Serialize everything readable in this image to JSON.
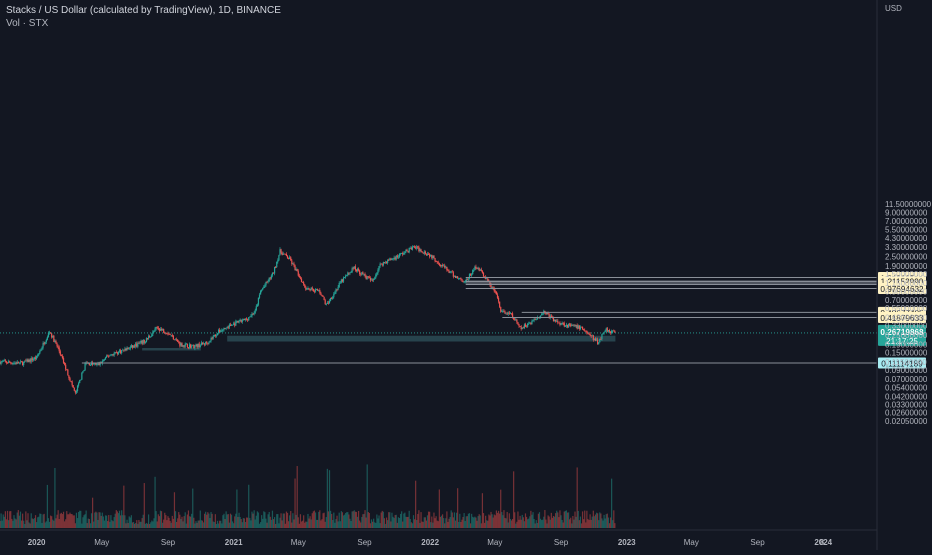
{
  "chart_data": {
    "type": "candlestick",
    "title": "Stacks / US Dollar (calculated by TradingView), 1D, BINANCE",
    "subtitle": "Vol · STX",
    "currency": "USD",
    "y_scale": "log",
    "y_ticks": [
      "11.50000000",
      "9.00000000",
      "7.00000000",
      "5.50000000",
      "4.30000000",
      "3.30000000",
      "2.50000000",
      "1.90000000",
      "1.50000000",
      "1.15000000",
      "0.90000000",
      "0.70000000",
      "0.55000000",
      "0.42000000",
      "0.33000000",
      "0.25000000",
      "0.19000000",
      "0.15000000",
      "0.11500000",
      "0.09000000",
      "0.07000000",
      "0.05400000",
      "0.04200000",
      "0.03300000",
      "0.02600000",
      "0.02050000"
    ],
    "x_ticks": [
      "2020",
      "May",
      "Sep",
      "2021",
      "May",
      "Sep",
      "2022",
      "May",
      "Sep",
      "2023",
      "May",
      "Sep",
      "2024",
      "8"
    ],
    "x_domain": [
      "2019-10-25",
      "2024-01-08"
    ],
    "last_price": "0.26719868",
    "countdown": "21:17:25",
    "last_date": "2022-12-11",
    "price_series": [
      {
        "date": "2019-10-25",
        "price": 0.115
      },
      {
        "date": "2019-12-05",
        "price": 0.11
      },
      {
        "date": "2020-01-01",
        "price": 0.13
      },
      {
        "date": "2020-01-25",
        "price": 0.28
      },
      {
        "date": "2020-02-10",
        "price": 0.17
      },
      {
        "date": "2020-03-13",
        "price": 0.045
      },
      {
        "date": "2020-04-01",
        "price": 0.11
      },
      {
        "date": "2020-04-25",
        "price": 0.105
      },
      {
        "date": "2020-05-15",
        "price": 0.14
      },
      {
        "date": "2020-06-20",
        "price": 0.17
      },
      {
        "date": "2020-07-20",
        "price": 0.21
      },
      {
        "date": "2020-08-12",
        "price": 0.31
      },
      {
        "date": "2020-09-01",
        "price": 0.27
      },
      {
        "date": "2020-09-25",
        "price": 0.19
      },
      {
        "date": "2020-10-20",
        "price": 0.18
      },
      {
        "date": "2020-11-12",
        "price": 0.2
      },
      {
        "date": "2020-12-05",
        "price": 0.28
      },
      {
        "date": "2020-12-25",
        "price": 0.33
      },
      {
        "date": "2021-01-25",
        "price": 0.4
      },
      {
        "date": "2021-02-10",
        "price": 0.5
      },
      {
        "date": "2021-02-20",
        "price": 0.9
      },
      {
        "date": "2021-03-15",
        "price": 1.5
      },
      {
        "date": "2021-03-28",
        "price": 2.9
      },
      {
        "date": "2021-04-15",
        "price": 2.3
      },
      {
        "date": "2021-05-15",
        "price": 1.0
      },
      {
        "date": "2021-06-10",
        "price": 0.9
      },
      {
        "date": "2021-06-22",
        "price": 0.6
      },
      {
        "date": "2021-07-20",
        "price": 1.2
      },
      {
        "date": "2021-08-12",
        "price": 1.8
      },
      {
        "date": "2021-09-15",
        "price": 1.2
      },
      {
        "date": "2021-10-01",
        "price": 2.0
      },
      {
        "date": "2021-11-01",
        "price": 2.5
      },
      {
        "date": "2021-12-02",
        "price": 3.3
      },
      {
        "date": "2022-01-01",
        "price": 2.6
      },
      {
        "date": "2022-01-20",
        "price": 2.0
      },
      {
        "date": "2022-02-15",
        "price": 1.4
      },
      {
        "date": "2022-03-08",
        "price": 1.2
      },
      {
        "date": "2022-03-28",
        "price": 1.9
      },
      {
        "date": "2022-04-15",
        "price": 1.3
      },
      {
        "date": "2022-05-05",
        "price": 0.8
      },
      {
        "date": "2022-05-12",
        "price": 0.5
      },
      {
        "date": "2022-06-01",
        "price": 0.45
      },
      {
        "date": "2022-06-18",
        "price": 0.3
      },
      {
        "date": "2022-07-15",
        "price": 0.4
      },
      {
        "date": "2022-08-01",
        "price": 0.5
      },
      {
        "date": "2022-08-20",
        "price": 0.38
      },
      {
        "date": "2022-09-15",
        "price": 0.33
      },
      {
        "date": "2022-10-10",
        "price": 0.31
      },
      {
        "date": "2022-11-09",
        "price": 0.2
      },
      {
        "date": "2022-11-22",
        "price": 0.3
      },
      {
        "date": "2022-12-11",
        "price": 0.267
      }
    ],
    "horizontal_levels": [
      {
        "price": 1.34916544,
        "label": "1.34916544",
        "start_date": "2022-03-08",
        "color": "#fff3c4"
      },
      {
        "price": 1.2,
        "label": "",
        "start_date": "2022-03-08",
        "color": "#fff3c4"
      },
      {
        "price": 1.2115299,
        "label": "1.21152990",
        "start_date": "2022-03-08",
        "color": "#fff3c4"
      },
      {
        "price": 1.15,
        "label": "",
        "start_date": "2022-03-08",
        "color": "#fff3c4"
      },
      {
        "price": 1.1,
        "label": "",
        "start_date": "2022-03-08",
        "color": "#fff3c4"
      },
      {
        "price": 0.97694632,
        "label": "0.97694632",
        "start_date": "2022-03-08",
        "color": "#fff3c4"
      },
      {
        "price": 0.48677405,
        "label": "0.48677405",
        "start_date": "2022-06-20",
        "color": "#fff3c4"
      },
      {
        "price": 0.41879633,
        "label": "0.41879633",
        "start_date": "2022-05-15",
        "color": "#fff3c4"
      },
      {
        "price": 0.11114189,
        "label": "0.11114189",
        "start_date": "2020-03-25",
        "color": "#a7ecf2"
      }
    ],
    "zones": [
      {
        "start_date": "2020-12-20",
        "end_date": "2022-12-11",
        "high": 0.246,
        "low": 0.208,
        "color": "#2b4b55"
      },
      {
        "start_date": "2020-07-15",
        "end_date": "2020-11-01",
        "high": 0.172,
        "low": 0.16,
        "color": "#2b4b55"
      }
    ],
    "colors": {
      "up": "#26a69a",
      "down": "#ef5350",
      "background": "#131722",
      "last_price": "#26a69a",
      "level": "#fff3c4",
      "support": "#a7ecf2"
    }
  }
}
